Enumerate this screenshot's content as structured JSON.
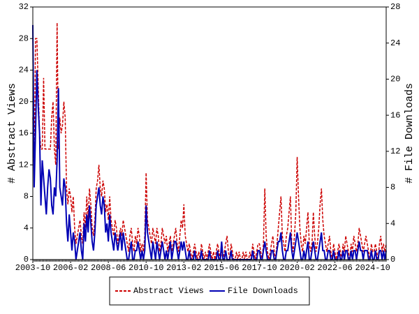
{
  "chart_data": {
    "type": "line",
    "categories": [
      "2003-10",
      null,
      null,
      null,
      null,
      null,
      null,
      null,
      null,
      null,
      null,
      null,
      null,
      null,
      null,
      null,
      null,
      null,
      null,
      null,
      null,
      null,
      null,
      null,
      null,
      null,
      null,
      null,
      "2006-02",
      null,
      null,
      null,
      null,
      null,
      null,
      null,
      null,
      null,
      null,
      null,
      null,
      null,
      null,
      null,
      null,
      null,
      null,
      null,
      null,
      null,
      null,
      null,
      null,
      null,
      null,
      null,
      "2008-06",
      null,
      null,
      null,
      null,
      null,
      null,
      null,
      null,
      null,
      null,
      null,
      null,
      null,
      null,
      null,
      null,
      null,
      null,
      null,
      null,
      null,
      null,
      null,
      null,
      null,
      null,
      null,
      "2010-10",
      null,
      null,
      null,
      null,
      null,
      null,
      null,
      null,
      null,
      null,
      null,
      null,
      null,
      null,
      null,
      null,
      null,
      null,
      null,
      null,
      null,
      null,
      null,
      null,
      null,
      null,
      null,
      "2013-02",
      null,
      null,
      null,
      null,
      null,
      null,
      null,
      null,
      null,
      null,
      null,
      null,
      null,
      null,
      null,
      null,
      null,
      null,
      null,
      null,
      null,
      null,
      null,
      null,
      null,
      null,
      null,
      "2015-06",
      null,
      null,
      null,
      null,
      null,
      null,
      null,
      null,
      null,
      null,
      null,
      null,
      null,
      null,
      null,
      null,
      null,
      null,
      null,
      null,
      null,
      null,
      null,
      null,
      null,
      null,
      null,
      "2017-10",
      null,
      null,
      null,
      null,
      null,
      null,
      null,
      null,
      null,
      null,
      null,
      null,
      null,
      null,
      null,
      null,
      null,
      null,
      null,
      null,
      null,
      null,
      null,
      null,
      null,
      null,
      null,
      "2020-02",
      null,
      null,
      null,
      null,
      null,
      null,
      null,
      null,
      null,
      null,
      null,
      null,
      null,
      null,
      null,
      null,
      null,
      null,
      null,
      null,
      null,
      null,
      null,
      null,
      null,
      null,
      null,
      "2022-06",
      null,
      null,
      null,
      null,
      null,
      null,
      null,
      null,
      null,
      null,
      null,
      null,
      null,
      null,
      null,
      null,
      null,
      null,
      null,
      null,
      null,
      null,
      null,
      null,
      null,
      null,
      null,
      "2024-10",
      null,
      null,
      null,
      null,
      null,
      null,
      null,
      null,
      null,
      null
    ],
    "series": [
      {
        "name": "Abstract Views",
        "color": "#cc0000",
        "line_style": "dashed",
        "values": [
          18,
          11,
          28,
          28,
          22,
          16,
          14,
          14,
          23,
          14,
          14,
          14,
          14,
          14,
          18,
          20,
          14,
          12,
          30,
          14,
          18,
          16,
          17,
          20,
          18,
          9,
          7,
          9,
          8,
          6,
          8,
          4,
          2,
          3,
          4,
          5,
          3,
          2,
          6,
          4,
          8,
          5,
          9,
          7,
          4,
          3,
          5,
          9,
          10,
          12,
          9,
          8,
          10,
          9,
          6,
          7,
          5,
          8,
          5,
          4,
          3,
          5,
          4,
          2,
          3,
          4,
          3,
          5,
          4,
          3,
          2,
          1,
          3,
          4,
          2,
          1,
          3,
          2,
          4,
          3,
          1,
          2,
          1,
          3,
          11,
          5,
          4,
          3,
          2,
          4,
          3,
          2,
          4,
          3,
          1,
          2,
          4,
          3,
          2,
          3,
          1,
          2,
          3,
          1,
          2,
          3,
          4,
          2,
          1,
          3,
          5,
          4,
          7,
          3,
          2,
          1,
          2,
          1,
          0,
          1,
          2,
          1,
          0,
          1,
          0,
          2,
          1,
          0,
          1,
          0,
          1,
          2,
          1,
          0,
          1,
          0,
          1,
          2,
          1,
          0,
          1,
          0,
          1,
          2,
          3,
          1,
          0,
          2,
          1,
          0,
          0,
          1,
          0,
          1,
          0,
          0,
          1,
          0,
          1,
          0,
          0,
          1,
          0,
          2,
          1,
          0,
          1,
          2,
          2,
          1,
          0,
          2,
          9,
          3,
          1,
          0,
          1,
          2,
          3,
          1,
          0,
          2,
          4,
          6,
          8,
          3,
          2,
          1,
          3,
          4,
          6,
          8,
          2,
          1,
          3,
          6,
          13,
          8,
          4,
          2,
          1,
          3,
          2,
          4,
          6,
          2,
          1,
          2,
          6,
          3,
          1,
          2,
          4,
          7,
          9,
          5,
          3,
          2,
          1,
          2,
          3,
          1,
          0,
          2,
          1,
          0,
          1,
          2,
          1,
          0,
          2,
          1,
          3,
          2,
          1,
          0,
          2,
          1,
          3,
          2,
          1,
          2,
          4,
          3,
          2,
          1,
          2,
          3,
          2,
          1,
          0,
          2,
          1,
          1,
          2,
          1,
          0,
          2,
          3,
          1,
          2,
          1,
          2
        ]
      },
      {
        "name": "File Downloads",
        "color": "#0000b4",
        "line_style": "solid",
        "axis": "y2",
        "values": [
          26,
          8,
          14,
          21,
          17,
          14,
          6,
          11,
          9,
          7,
          5,
          8,
          10,
          9,
          6,
          5,
          8,
          7,
          11,
          19,
          8,
          7,
          6,
          9,
          8,
          4,
          2,
          5,
          3,
          1,
          3,
          2,
          0,
          1,
          2,
          3,
          1,
          0,
          4,
          2,
          5,
          3,
          6,
          4,
          2,
          1,
          3,
          6,
          7,
          8,
          6,
          5,
          7,
          6,
          3,
          4,
          2,
          5,
          3,
          2,
          1,
          3,
          2,
          1,
          2,
          3,
          1,
          3,
          2,
          1,
          0,
          0,
          1,
          2,
          0,
          0,
          1,
          1,
          2,
          1,
          0,
          1,
          0,
          1,
          6,
          3,
          2,
          1,
          0,
          2,
          1,
          0,
          2,
          1,
          0,
          1,
          2,
          1,
          0,
          1,
          0,
          1,
          2,
          0,
          1,
          2,
          2,
          1,
          0,
          1,
          2,
          1,
          2,
          1,
          0,
          0,
          1,
          0,
          0,
          0,
          1,
          0,
          0,
          0,
          0,
          1,
          0,
          0,
          0,
          0,
          0,
          1,
          0,
          0,
          0,
          0,
          0,
          1,
          0,
          0,
          2,
          0,
          0,
          1,
          0,
          0,
          0,
          1,
          0,
          0,
          0,
          0,
          0,
          0,
          0,
          0,
          0,
          0,
          0,
          0,
          0,
          0,
          0,
          1,
          0,
          0,
          0,
          1,
          1,
          0,
          0,
          1,
          2,
          1,
          0,
          0,
          0,
          1,
          1,
          0,
          0,
          1,
          2,
          2,
          3,
          1,
          0,
          0,
          1,
          1,
          2,
          3,
          1,
          0,
          1,
          2,
          3,
          2,
          1,
          0,
          0,
          1,
          0,
          1,
          2,
          0,
          0,
          1,
          2,
          1,
          0,
          0,
          1,
          2,
          3,
          1,
          1,
          0,
          0,
          1,
          1,
          0,
          0,
          1,
          0,
          0,
          0,
          1,
          0,
          0,
          1,
          0,
          1,
          1,
          0,
          0,
          1,
          0,
          1,
          1,
          0,
          1,
          2,
          1,
          1,
          0,
          1,
          1,
          1,
          0,
          0,
          1,
          0,
          0,
          1,
          0,
          0,
          1,
          1,
          0,
          1,
          0,
          1
        ]
      }
    ],
    "y_label": "# Abstract Views",
    "y2_label": "# File Downloads",
    "ylim": [
      0,
      32
    ],
    "yticks": [
      0,
      4,
      8,
      12,
      16,
      20,
      24,
      28,
      32
    ],
    "y2lim": [
      0,
      28
    ],
    "y2ticks": [
      0,
      4,
      8,
      12,
      16,
      20,
      24,
      28
    ],
    "legend": "bottom",
    "grid": false
  }
}
